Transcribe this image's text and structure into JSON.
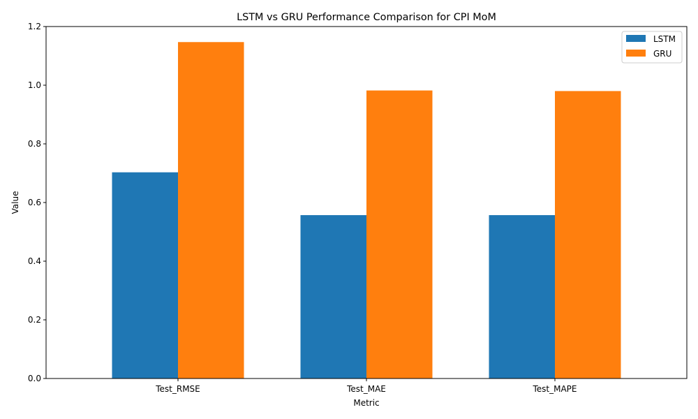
{
  "chart_data": {
    "type": "bar",
    "title": "LSTM vs GRU Performance Comparison for CPI MoM",
    "xlabel": "Metric",
    "ylabel": "Value",
    "categories": [
      "Test_RMSE",
      "Test_MAE",
      "Test_MAPE"
    ],
    "series": [
      {
        "name": "LSTM",
        "color": "#1f77b4",
        "values": [
          0.703,
          0.557,
          0.557
        ]
      },
      {
        "name": "GRU",
        "color": "#ff7f0e",
        "values": [
          1.147,
          0.982,
          0.98
        ]
      }
    ],
    "ylim": [
      0,
      1.2
    ],
    "yticks": [
      "0.0",
      "0.2",
      "0.4",
      "0.6",
      "0.8",
      "1.0",
      "1.2"
    ],
    "grid": false,
    "legend_position": "top-right"
  }
}
